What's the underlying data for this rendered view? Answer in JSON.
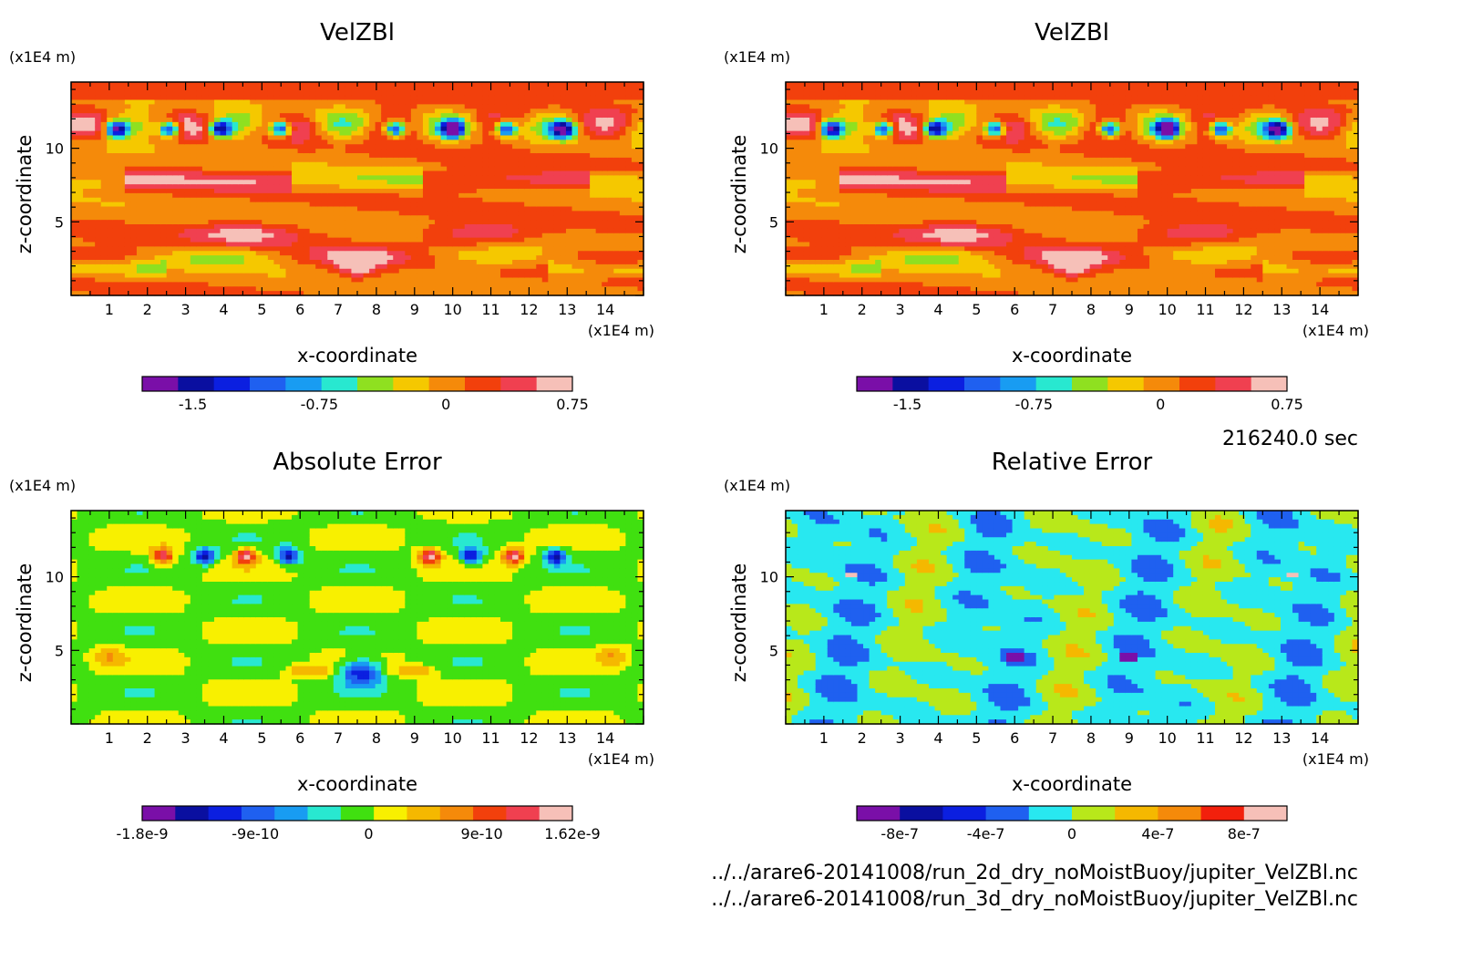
{
  "figure": {
    "time_label": "216240.0 sec",
    "footer_lines": [
      "../../arare6-20141008/run_2d_dry_noMoistBuoy/jupiter_VelZBl.nc",
      "../../arare6-20141008/run_3d_dry_noMoistBuoy/jupiter_VelZBl.nc"
    ]
  },
  "chart_data": [
    {
      "type": "heatmap",
      "title": "VelZBl",
      "xlabel": "x-coordinate",
      "ylabel": "z-coordinate",
      "x_unit": "(x1E4 m)",
      "y_unit": "(x1E4 m)",
      "xlim": [
        0,
        15
      ],
      "ylim": [
        0,
        14.5
      ],
      "x_ticks": [
        "1",
        "2",
        "3",
        "4",
        "5",
        "6",
        "7",
        "8",
        "9",
        "10",
        "11",
        "12",
        "13",
        "14"
      ],
      "y_ticks": [
        "5",
        "10"
      ],
      "colorbar": {
        "colors": [
          "#7a0fa8",
          "#0a0fa0",
          "#0b1fe0",
          "#1f60f0",
          "#189cf2",
          "#28e8d0",
          "#8fe020",
          "#f5c800",
          "#f58a0a",
          "#f2400c",
          "#f04050",
          "#f6c0b8"
        ],
        "ticks": [
          "-1.5",
          "-0.75",
          "0",
          "0.75"
        ],
        "tick_values": [
          -1.5,
          -0.75,
          0,
          0.75
        ],
        "vmin": -1.8,
        "vmax": 0.75
      }
    },
    {
      "type": "heatmap",
      "title": "VelZBl",
      "xlabel": "x-coordinate",
      "ylabel": "z-coordinate",
      "x_unit": "(x1E4 m)",
      "y_unit": "(x1E4 m)",
      "xlim": [
        0,
        15
      ],
      "ylim": [
        0,
        14.5
      ],
      "x_ticks": [
        "1",
        "2",
        "3",
        "4",
        "5",
        "6",
        "7",
        "8",
        "9",
        "10",
        "11",
        "12",
        "13",
        "14"
      ],
      "y_ticks": [
        "5",
        "10"
      ],
      "colorbar": {
        "colors": [
          "#7a0fa8",
          "#0a0fa0",
          "#0b1fe0",
          "#1f60f0",
          "#189cf2",
          "#28e8d0",
          "#8fe020",
          "#f5c800",
          "#f58a0a",
          "#f2400c",
          "#f04050",
          "#f6c0b8"
        ],
        "ticks": [
          "-1.5",
          "-0.75",
          "0",
          "0.75"
        ],
        "tick_values": [
          -1.5,
          -0.75,
          0,
          0.75
        ],
        "vmin": -1.8,
        "vmax": 0.75
      }
    },
    {
      "type": "heatmap",
      "title": "Absolute Error",
      "xlabel": "x-coordinate",
      "ylabel": "z-coordinate",
      "x_unit": "(x1E4 m)",
      "y_unit": "(x1E4 m)",
      "xlim": [
        0,
        15
      ],
      "ylim": [
        0,
        14.5
      ],
      "x_ticks": [
        "1",
        "2",
        "3",
        "4",
        "5",
        "6",
        "7",
        "8",
        "9",
        "10",
        "11",
        "12",
        "13",
        "14"
      ],
      "y_ticks": [
        "5",
        "10"
      ],
      "colorbar": {
        "colors": [
          "#7a0fa8",
          "#0a0fa0",
          "#0b1fe0",
          "#1f60f0",
          "#189cf2",
          "#28e8d0",
          "#40e010",
          "#f8f000",
          "#f5b800",
          "#f58a0a",
          "#f2400c",
          "#f04050",
          "#f6c0b8"
        ],
        "ticks": [
          "-1.8e-9",
          "-9e-10",
          "0",
          "9e-10",
          "1.62e-9"
        ],
        "tick_values": [
          -1.8e-09,
          -9e-10,
          0,
          9e-10,
          1.62e-09
        ],
        "vmin": -1.8e-09,
        "vmax": 1.62e-09
      }
    },
    {
      "type": "heatmap",
      "title": "Relative Error",
      "xlabel": "x-coordinate",
      "ylabel": "z-coordinate",
      "x_unit": "(x1E4 m)",
      "y_unit": "(x1E4 m)",
      "xlim": [
        0,
        15
      ],
      "ylim": [
        0,
        14.5
      ],
      "x_ticks": [
        "1",
        "2",
        "3",
        "4",
        "5",
        "6",
        "7",
        "8",
        "9",
        "10",
        "11",
        "12",
        "13",
        "14"
      ],
      "y_ticks": [
        "5",
        "10"
      ],
      "colorbar": {
        "colors": [
          "#7a0fa8",
          "#0a0fa0",
          "#0b1fe0",
          "#1f60f0",
          "#28e8f0",
          "#b8e81a",
          "#f5b800",
          "#f58a0a",
          "#f2200c",
          "#f6c0b8"
        ],
        "ticks": [
          "-8e-7",
          "-4e-7",
          "0",
          "4e-7",
          "8e-7"
        ],
        "tick_values": [
          -8e-07,
          -4e-07,
          0,
          4e-07,
          8e-07
        ],
        "vmin": -1e-06,
        "vmax": 1e-06
      }
    }
  ]
}
